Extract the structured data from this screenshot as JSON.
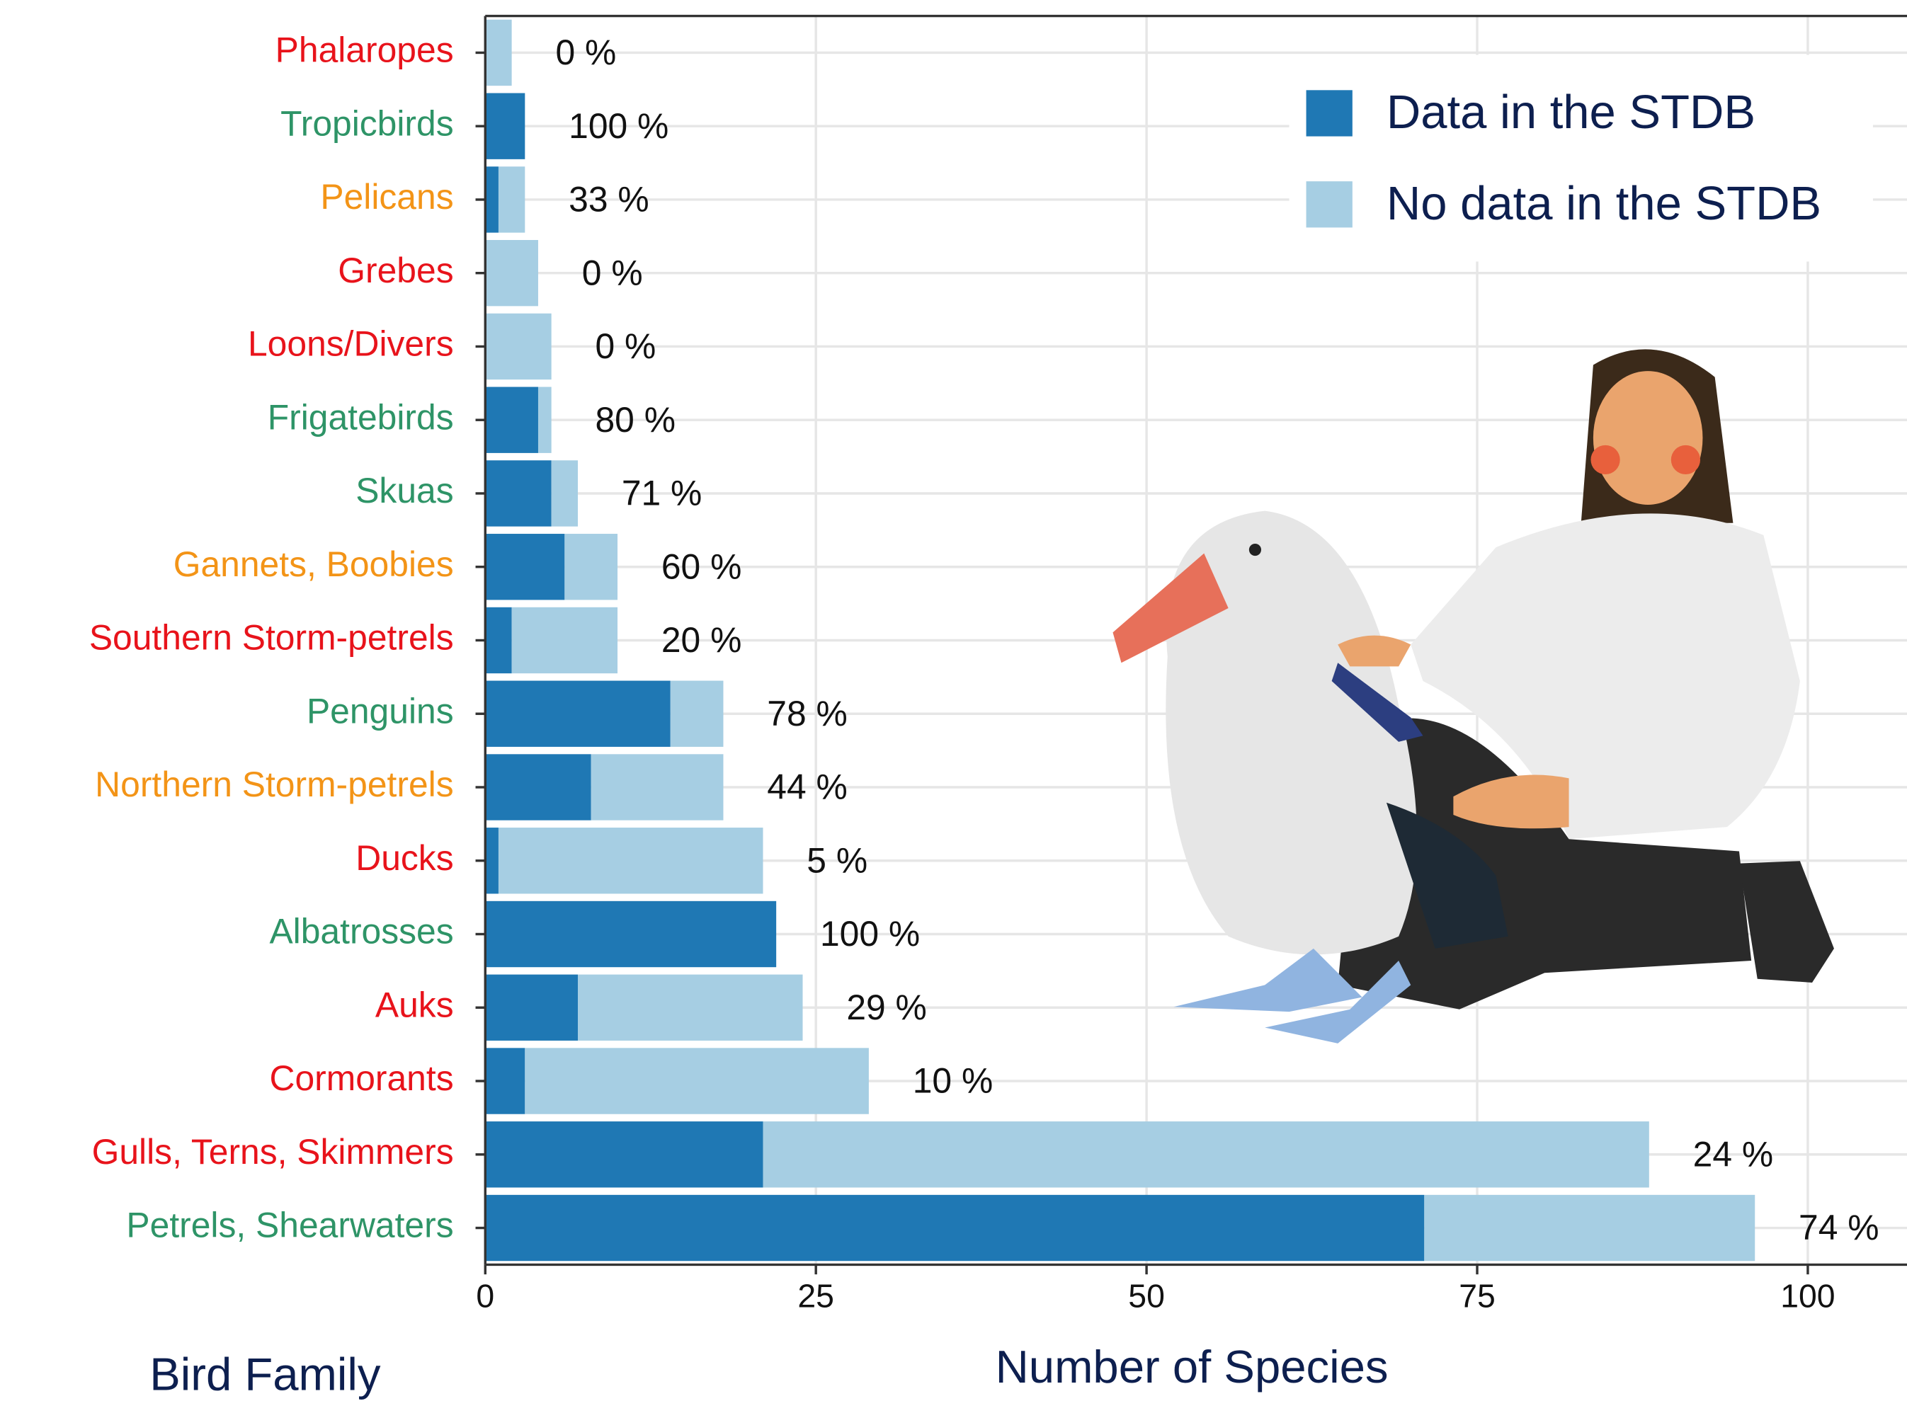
{
  "chart_data": {
    "type": "bar",
    "orientation": "horizontal",
    "stacked": true,
    "categories": [
      "Phalaropes",
      "Tropicbirds",
      "Pelicans",
      "Grebes",
      "Loons/Divers",
      "Frigatebirds",
      "Skuas",
      "Gannets, Boobies",
      "Southern Storm-petrels",
      "Penguins",
      "Northern Storm-petrels",
      "Ducks",
      "Albatrosses",
      "Auks",
      "Cormorants",
      "Gulls, Terns, Skimmers",
      "Petrels, Shearwaters"
    ],
    "category_colors": [
      "#e8131b",
      "#2e9467",
      "#f39417",
      "#e8131b",
      "#e8131b",
      "#2e9467",
      "#2e9467",
      "#f39417",
      "#e8131b",
      "#2e9467",
      "#f39417",
      "#e8131b",
      "#2e9467",
      "#e8131b",
      "#e8131b",
      "#e8131b",
      "#2e9467"
    ],
    "series": [
      {
        "name": "Data in the STDB",
        "color": "#1f78b4",
        "values": [
          0,
          3,
          1,
          0,
          0,
          4,
          5,
          6,
          2,
          14,
          8,
          1,
          22,
          7,
          3,
          21,
          71
        ]
      },
      {
        "name": "No data in the STDB",
        "color": "#a6cee3",
        "values": [
          2,
          0,
          2,
          4,
          5,
          1,
          2,
          4,
          8,
          4,
          10,
          20,
          0,
          17,
          26,
          67,
          25
        ]
      }
    ],
    "percent_labels": [
      "0 %",
      "100 %",
      "33 %",
      "0 %",
      "0 %",
      "80 %",
      "71 %",
      "60 %",
      "20 %",
      "78 %",
      "44 %",
      "5 %",
      "100 %",
      "29 %",
      "10 %",
      "24 %",
      "74 %"
    ],
    "xlim": [
      0,
      107.5
    ],
    "xticks": [
      0,
      25,
      50,
      75,
      100
    ],
    "grid": true,
    "xlabel": "Number of Species",
    "ylabel": "Bird Family",
    "legend": "top-right"
  }
}
